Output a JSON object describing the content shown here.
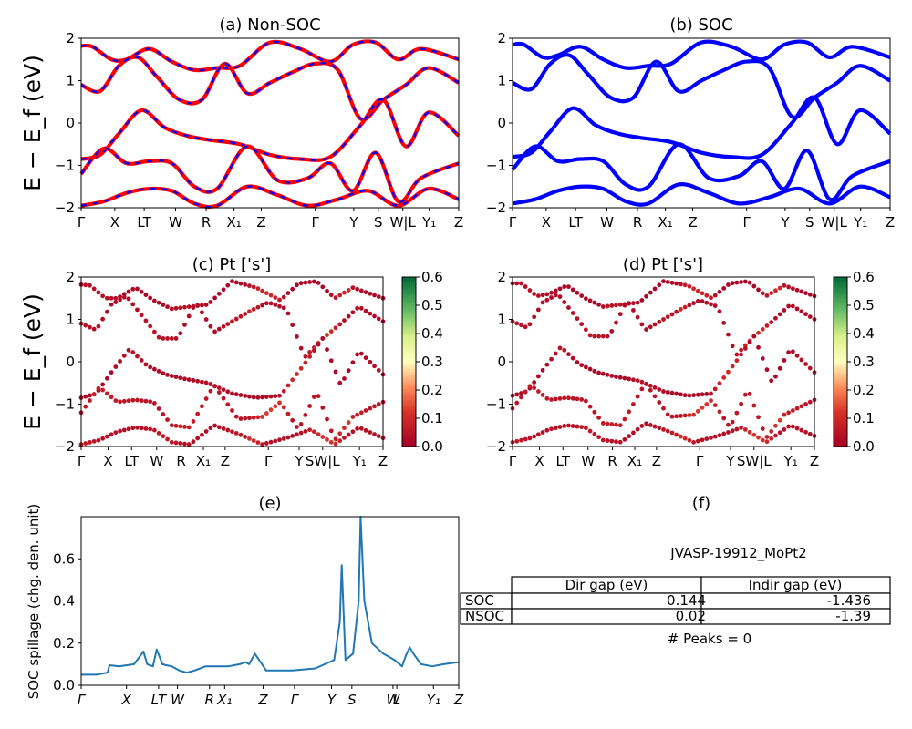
{
  "panels": {
    "a": {
      "title": "(a) Non-SOC"
    },
    "b": {
      "title": "(b) SOC"
    },
    "c": {
      "title": "(c)  Pt ['s']"
    },
    "d": {
      "title": "(d) Pt ['s']"
    },
    "e": {
      "title": "(e)"
    },
    "f": {
      "title": "(f)"
    }
  },
  "axis": {
    "ylabel_bands": "E − E_f (eV)",
    "ylabel_spillage": "SOC spillage (chg. den. unit)",
    "kpath_labels": [
      "Γ",
      "X",
      "LT",
      "W",
      "R",
      "X₁",
      "Z",
      "Γ",
      "Y",
      "S",
      "W|L",
      "Y₁",
      "Z"
    ],
    "e_kpath_labels": [
      "Γ",
      "X",
      "LT",
      "W",
      "R",
      "X₁",
      "Z",
      "Γ",
      "Y",
      "S",
      "W",
      "L",
      "Y₁",
      "Z"
    ]
  },
  "colorbar": {
    "ticks": [
      "0.6",
      "0.5",
      "0.4",
      "0.3",
      "0.2",
      "0.1",
      "0.0"
    ]
  },
  "table": {
    "title": "JVASP-19912_MoPt2",
    "headers": [
      "",
      "Dir gap (eV)",
      "Indir gap (eV)"
    ],
    "rows": [
      {
        "label": "SOC",
        "dir": "0.144",
        "indir": "-1.436"
      },
      {
        "label": "NSOC",
        "dir": "0.02",
        "indir": "-1.39"
      }
    ],
    "footer": "# Peaks = 0"
  },
  "colors": {
    "nonsoc": "#ff0000",
    "nonsoc_dash": "#0000ff",
    "soc": "#0000ff",
    "spillage": "#1f77b4",
    "cmap_low": "#a50026",
    "cmap_mid": "#ffffbf",
    "cmap_high": "#006837"
  },
  "chart_data": [
    {
      "panel": "a",
      "type": "line",
      "title": "(a) Non-SOC",
      "ylabel": "E − E_f (eV)",
      "ylim": [
        -2,
        2
      ],
      "yticks": [
        -2,
        -1,
        0,
        1,
        2
      ],
      "xticks": [
        "Γ",
        "X",
        "LT",
        "W",
        "R",
        "X₁",
        "Z",
        "Γ",
        "Y",
        "S",
        "W|L",
        "Y₁",
        "Z"
      ],
      "style": "red solid with blue dashes",
      "bands": [
        {
          "x": [
            0,
            0.03,
            0.08,
            0.12,
            0.18,
            0.24,
            0.3,
            0.36,
            0.42,
            0.5,
            0.58,
            0.66,
            0.72,
            0.78,
            0.84,
            0.9,
            1.0
          ],
          "y": [
            1.82,
            1.8,
            1.5,
            1.5,
            1.75,
            1.45,
            1.25,
            1.3,
            1.35,
            1.9,
            1.75,
            1.45,
            1.85,
            1.9,
            1.5,
            1.75,
            1.5
          ]
        },
        {
          "x": [
            0,
            0.05,
            0.1,
            0.15,
            0.2,
            0.26,
            0.32,
            0.38,
            0.44,
            0.5,
            0.56,
            0.62,
            0.68,
            0.74,
            0.8,
            0.86,
            0.92,
            1.0
          ],
          "y": [
            0.9,
            0.75,
            1.35,
            1.55,
            1.1,
            0.55,
            0.55,
            1.4,
            0.7,
            0.95,
            1.2,
            1.4,
            1.25,
            0.1,
            0.55,
            0.9,
            1.3,
            0.95
          ]
        },
        {
          "x": [
            0,
            0.05,
            0.1,
            0.16,
            0.22,
            0.28,
            0.34,
            0.42,
            0.5,
            0.58,
            0.66,
            0.74,
            0.8,
            0.86,
            0.92,
            1.0
          ],
          "y": [
            -0.85,
            -0.75,
            -0.25,
            0.3,
            -0.1,
            -0.3,
            -0.4,
            -0.5,
            -0.75,
            -0.85,
            -0.8,
            -0.05,
            0.55,
            -0.55,
            0.25,
            -0.3
          ]
        },
        {
          "x": [
            0,
            0.06,
            0.12,
            0.18,
            0.24,
            0.3,
            0.36,
            0.44,
            0.52,
            0.6,
            0.66,
            0.72,
            0.78,
            0.84,
            0.9,
            1.0
          ],
          "y": [
            -1.2,
            -0.6,
            -0.95,
            -0.9,
            -0.95,
            -1.5,
            -1.55,
            -0.55,
            -1.35,
            -1.3,
            -0.95,
            -1.6,
            -0.7,
            -1.85,
            -1.3,
            -0.95
          ]
        },
        {
          "x": [
            0,
            0.06,
            0.12,
            0.18,
            0.24,
            0.3,
            0.36,
            0.44,
            0.52,
            0.6,
            0.68,
            0.76,
            0.84,
            0.92,
            1.0
          ],
          "y": [
            -1.95,
            -1.85,
            -1.65,
            -1.55,
            -1.6,
            -1.9,
            -1.95,
            -1.5,
            -1.7,
            -1.95,
            -1.8,
            -1.6,
            -1.95,
            -1.55,
            -1.8
          ]
        }
      ]
    },
    {
      "panel": "b",
      "type": "line",
      "title": "(b) SOC",
      "ylabel": "",
      "ylim": [
        -2,
        2
      ],
      "yticks": [
        -2,
        -1,
        0,
        1,
        2
      ],
      "xticks": [
        "Γ",
        "X",
        "LT",
        "W",
        "R",
        "X₁",
        "Z",
        "Γ",
        "Y",
        "S",
        "W|L",
        "Y₁",
        "Z"
      ],
      "style": "blue solid",
      "bands": [
        {
          "x": [
            0,
            0.03,
            0.08,
            0.12,
            0.18,
            0.24,
            0.3,
            0.36,
            0.42,
            0.5,
            0.58,
            0.66,
            0.72,
            0.78,
            0.84,
            0.9,
            1.0
          ],
          "y": [
            1.85,
            1.85,
            1.55,
            1.6,
            1.8,
            1.5,
            1.3,
            1.35,
            1.4,
            1.9,
            1.8,
            1.5,
            1.85,
            1.9,
            1.55,
            1.8,
            1.55
          ]
        },
        {
          "x": [
            0,
            0.05,
            0.1,
            0.15,
            0.2,
            0.26,
            0.32,
            0.38,
            0.44,
            0.5,
            0.56,
            0.62,
            0.68,
            0.74,
            0.8,
            0.86,
            0.92,
            1.0
          ],
          "y": [
            0.95,
            0.8,
            1.4,
            1.6,
            1.15,
            0.6,
            0.6,
            1.45,
            0.75,
            1.0,
            1.25,
            1.45,
            1.3,
            0.15,
            0.6,
            0.95,
            1.35,
            1.0
          ]
        },
        {
          "x": [
            0,
            0.05,
            0.1,
            0.16,
            0.22,
            0.28,
            0.34,
            0.42,
            0.5,
            0.58,
            0.66,
            0.74,
            0.8,
            0.86,
            0.92,
            1.0
          ],
          "y": [
            -0.8,
            -0.7,
            -0.2,
            0.35,
            -0.05,
            -0.25,
            -0.35,
            -0.45,
            -0.7,
            -0.8,
            -0.75,
            0.0,
            0.6,
            -0.5,
            0.3,
            -0.25
          ]
        },
        {
          "x": [
            0,
            0.06,
            0.12,
            0.18,
            0.24,
            0.3,
            0.36,
            0.44,
            0.52,
            0.6,
            0.66,
            0.72,
            0.78,
            0.84,
            0.9,
            1.0
          ],
          "y": [
            -1.1,
            -0.55,
            -0.9,
            -0.85,
            -0.9,
            -1.45,
            -1.5,
            -0.5,
            -1.3,
            -1.25,
            -0.9,
            -1.55,
            -0.65,
            -1.8,
            -1.25,
            -0.9
          ]
        },
        {
          "x": [
            0,
            0.06,
            0.12,
            0.18,
            0.24,
            0.3,
            0.36,
            0.44,
            0.52,
            0.6,
            0.68,
            0.76,
            0.84,
            0.92,
            1.0
          ],
          "y": [
            -1.9,
            -1.8,
            -1.6,
            -1.5,
            -1.55,
            -1.85,
            -1.9,
            -1.45,
            -1.65,
            -1.9,
            -1.75,
            -1.55,
            -1.9,
            -1.5,
            -1.75
          ]
        }
      ]
    },
    {
      "panel": "c",
      "type": "scatter",
      "title": "(c)  Pt ['s']",
      "ylabel": "E − E_f (eV)",
      "ylim": [
        -2,
        2
      ],
      "yticks": [
        -2,
        -1,
        0,
        1,
        2
      ],
      "xticks": [
        "Γ",
        "X",
        "LT",
        "W",
        "R",
        "X₁",
        "Z",
        "Γ",
        "Y",
        "SW|L",
        "Y₁",
        "Z"
      ],
      "colorbar": {
        "range": [
          0.0,
          0.6
        ],
        "cmap": "RdYlGn"
      },
      "bands": [
        {
          "x": [
            0,
            0.03,
            0.08,
            0.12,
            0.18,
            0.24,
            0.3,
            0.36,
            0.42,
            0.5,
            0.58,
            0.66,
            0.72,
            0.78,
            0.84,
            0.9,
            1.0
          ],
          "y": [
            1.82,
            1.8,
            1.5,
            1.5,
            1.75,
            1.45,
            1.25,
            1.3,
            1.35,
            1.9,
            1.75,
            1.45,
            1.85,
            1.9,
            1.5,
            1.75,
            1.5
          ]
        },
        {
          "x": [
            0,
            0.05,
            0.1,
            0.15,
            0.2,
            0.26,
            0.32,
            0.38,
            0.44,
            0.5,
            0.56,
            0.62,
            0.68,
            0.74,
            0.8,
            0.86,
            0.92,
            1.0
          ],
          "y": [
            0.9,
            0.75,
            1.35,
            1.55,
            1.1,
            0.55,
            0.55,
            1.4,
            0.7,
            0.95,
            1.2,
            1.4,
            1.25,
            0.1,
            0.55,
            0.9,
            1.3,
            0.95
          ]
        },
        {
          "x": [
            0,
            0.05,
            0.1,
            0.16,
            0.22,
            0.28,
            0.34,
            0.42,
            0.5,
            0.58,
            0.66,
            0.74,
            0.8,
            0.86,
            0.92,
            1.0
          ],
          "y": [
            -0.85,
            -0.75,
            -0.25,
            0.3,
            -0.1,
            -0.3,
            -0.4,
            -0.5,
            -0.75,
            -0.85,
            -0.8,
            -0.05,
            0.55,
            -0.55,
            0.25,
            -0.3
          ]
        },
        {
          "x": [
            0,
            0.06,
            0.12,
            0.18,
            0.24,
            0.3,
            0.36,
            0.44,
            0.52,
            0.6,
            0.66,
            0.72,
            0.78,
            0.84,
            0.9,
            1.0
          ],
          "y": [
            -1.2,
            -0.6,
            -0.95,
            -0.9,
            -0.95,
            -1.5,
            -1.55,
            -0.55,
            -1.35,
            -1.3,
            -0.95,
            -1.6,
            -0.7,
            -1.85,
            -1.3,
            -0.95
          ]
        },
        {
          "x": [
            0,
            0.06,
            0.12,
            0.18,
            0.24,
            0.3,
            0.36,
            0.44,
            0.52,
            0.6,
            0.68,
            0.76,
            0.84,
            0.92,
            1.0
          ],
          "y": [
            -1.95,
            -1.85,
            -1.65,
            -1.55,
            -1.6,
            -1.9,
            -1.95,
            -1.5,
            -1.7,
            -1.95,
            -1.8,
            -1.6,
            -1.95,
            -1.55,
            -1.8
          ]
        }
      ],
      "weights": [
        0.02,
        0.03,
        0.02,
        0.05,
        0.04
      ]
    },
    {
      "panel": "d",
      "type": "scatter",
      "title": "(d) Pt ['s']",
      "ylabel": "",
      "ylim": [
        -2,
        2
      ],
      "yticks": [
        -2,
        -1,
        0,
        1,
        2
      ],
      "xticks": [
        "Γ",
        "X",
        "LT",
        "W",
        "R",
        "X₁",
        "Z",
        "Γ",
        "Y",
        "SW|L",
        "Y₁",
        "Z"
      ],
      "colorbar": {
        "range": [
          0.0,
          0.6
        ],
        "cmap": "RdYlGn"
      },
      "bands": [
        {
          "x": [
            0,
            0.03,
            0.08,
            0.12,
            0.18,
            0.24,
            0.3,
            0.36,
            0.42,
            0.5,
            0.58,
            0.66,
            0.72,
            0.78,
            0.84,
            0.9,
            1.0
          ],
          "y": [
            1.85,
            1.85,
            1.55,
            1.6,
            1.8,
            1.5,
            1.3,
            1.35,
            1.4,
            1.9,
            1.8,
            1.5,
            1.85,
            1.9,
            1.55,
            1.8,
            1.55
          ]
        },
        {
          "x": [
            0,
            0.05,
            0.1,
            0.15,
            0.2,
            0.26,
            0.32,
            0.38,
            0.44,
            0.5,
            0.56,
            0.62,
            0.68,
            0.74,
            0.8,
            0.86,
            0.92,
            1.0
          ],
          "y": [
            0.95,
            0.8,
            1.4,
            1.6,
            1.15,
            0.6,
            0.6,
            1.45,
            0.75,
            1.0,
            1.25,
            1.45,
            1.3,
            0.15,
            0.6,
            0.95,
            1.35,
            1.0
          ]
        },
        {
          "x": [
            0,
            0.05,
            0.1,
            0.16,
            0.22,
            0.28,
            0.34,
            0.42,
            0.5,
            0.58,
            0.66,
            0.74,
            0.8,
            0.86,
            0.92,
            1.0
          ],
          "y": [
            -0.8,
            -0.7,
            -0.2,
            0.35,
            -0.05,
            -0.25,
            -0.35,
            -0.45,
            -0.7,
            -0.8,
            -0.75,
            0.0,
            0.6,
            -0.5,
            0.3,
            -0.25
          ]
        },
        {
          "x": [
            0,
            0.06,
            0.12,
            0.18,
            0.24,
            0.3,
            0.36,
            0.44,
            0.52,
            0.6,
            0.66,
            0.72,
            0.78,
            0.84,
            0.9,
            1.0
          ],
          "y": [
            -1.1,
            -0.55,
            -0.9,
            -0.85,
            -0.9,
            -1.45,
            -1.5,
            -0.5,
            -1.3,
            -1.25,
            -0.9,
            -1.55,
            -0.65,
            -1.8,
            -1.25,
            -0.9
          ]
        },
        {
          "x": [
            0,
            0.06,
            0.12,
            0.18,
            0.24,
            0.3,
            0.36,
            0.44,
            0.52,
            0.6,
            0.68,
            0.76,
            0.84,
            0.92,
            1.0
          ],
          "y": [
            -1.9,
            -1.8,
            -1.6,
            -1.5,
            -1.55,
            -1.85,
            -1.9,
            -1.45,
            -1.65,
            -1.9,
            -1.75,
            -1.55,
            -1.9,
            -1.5,
            -1.75
          ]
        }
      ],
      "weights": [
        0.02,
        0.03,
        0.02,
        0.05,
        0.04
      ]
    },
    {
      "panel": "e",
      "type": "line",
      "title": "(e)",
      "ylabel": "SOC spillage (chg. den. unit)",
      "ylim": [
        0,
        0.8
      ],
      "yticks": [
        0.0,
        0.2,
        0.4,
        0.6
      ],
      "xticks": [
        "Γ",
        "X",
        "LT",
        "W",
        "R",
        "X₁",
        "Z",
        "Γ",
        "Y",
        "S",
        "W",
        "L",
        "Y₁",
        "Z"
      ],
      "x": [
        0,
        0.04,
        0.07,
        0.075,
        0.1,
        0.14,
        0.165,
        0.175,
        0.19,
        0.2,
        0.215,
        0.225,
        0.24,
        0.26,
        0.28,
        0.3,
        0.33,
        0.36,
        0.39,
        0.42,
        0.435,
        0.445,
        0.46,
        0.49,
        0.56,
        0.62,
        0.67,
        0.685,
        0.69,
        0.7,
        0.72,
        0.735,
        0.74,
        0.75,
        0.77,
        0.8,
        0.83,
        0.85,
        0.86,
        0.87,
        0.88,
        0.9,
        0.93,
        0.96,
        1.0
      ],
      "y": [
        0.05,
        0.05,
        0.06,
        0.095,
        0.09,
        0.1,
        0.16,
        0.1,
        0.09,
        0.17,
        0.1,
        0.095,
        0.09,
        0.07,
        0.06,
        0.07,
        0.09,
        0.09,
        0.09,
        0.1,
        0.11,
        0.1,
        0.15,
        0.07,
        0.07,
        0.08,
        0.12,
        0.3,
        0.57,
        0.12,
        0.15,
        0.4,
        0.8,
        0.4,
        0.2,
        0.15,
        0.12,
        0.09,
        0.14,
        0.18,
        0.15,
        0.1,
        0.09,
        0.1,
        0.11
      ]
    }
  ]
}
